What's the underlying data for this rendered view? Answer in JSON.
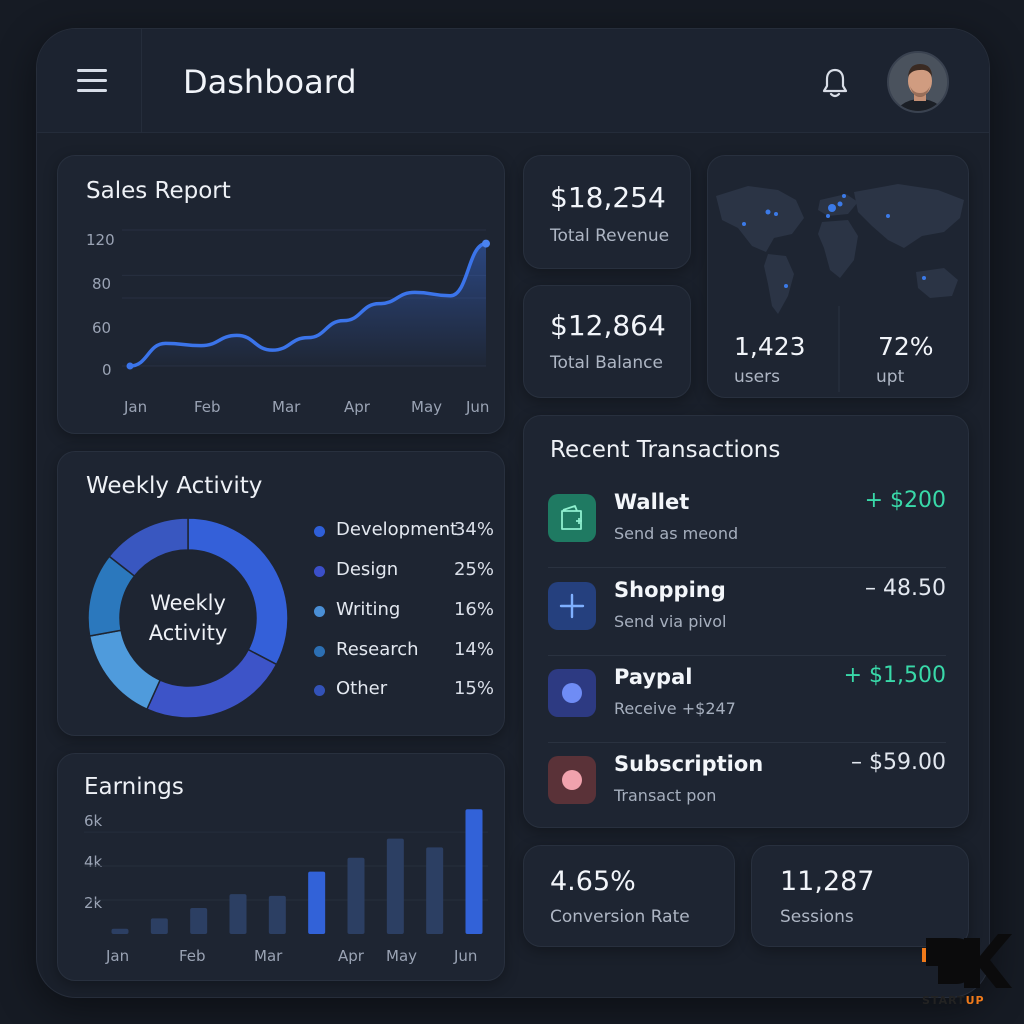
{
  "header": {
    "title": "Dashboard"
  },
  "sales_report": {
    "title": "Sales Report",
    "y_ticks": [
      "120",
      "80",
      "60",
      "0"
    ],
    "x_ticks": [
      "Jan",
      "Feb",
      "Mar",
      "Apr",
      "May",
      "Jun"
    ]
  },
  "stats": {
    "revenue_value": "$18,254",
    "revenue_label": "Total Revenue",
    "balance_value": "$12,864",
    "balance_label": "Total Balance"
  },
  "map_card": {
    "users_value": "1,423",
    "users_label": "users",
    "upt_value": "72%",
    "upt_label": "upt"
  },
  "weekly_activity": {
    "title": "Weekly Activity",
    "center_line1": "Weekly",
    "center_line2": "Activity",
    "items": [
      {
        "name": "Development",
        "pct": "34%",
        "value": 34,
        "color": "#2f5fd8"
      },
      {
        "name": "Design",
        "pct": "25%",
        "value": 25,
        "color": "#3b4fc9"
      },
      {
        "name": "Writing",
        "pct": "16%",
        "value": 16,
        "color": "#4a8fd6"
      },
      {
        "name": "Research",
        "pct": "14%",
        "value": 14,
        "color": "#2c6fb3"
      },
      {
        "name": "Other",
        "pct": "15%",
        "value": 15,
        "color": "#3352b8"
      }
    ]
  },
  "transactions": {
    "title": "Recent Transactions",
    "items": [
      {
        "name": "Wallet",
        "sub": "Send as meond",
        "amount": "+ $200",
        "color": "#39d9a9",
        "icon": "wallet-icon"
      },
      {
        "name": "Shopping",
        "sub": "Send via pivol",
        "amount": "– 48.50",
        "color": "#e3e8f0",
        "icon": "plus-icon"
      },
      {
        "name": "Paypal",
        "sub": "Receive +$247",
        "amount": "+ $1,500",
        "color": "#39d9a9",
        "icon": "paypal-icon"
      },
      {
        "name": "Subscription",
        "sub": "Transact pon",
        "amount": "– $59.00",
        "color": "#e3e8f0",
        "icon": "subscription-icon"
      }
    ]
  },
  "earnings": {
    "title": "Earnings",
    "y_ticks": [
      "6k",
      "4k",
      "2k"
    ],
    "x_ticks": [
      "Jan",
      "Feb",
      "Mar",
      "Apr",
      "May",
      "Jun"
    ]
  },
  "bottom_stats": {
    "conversion_value": "4.65%",
    "conversion_label": "Conversion Rate",
    "sessions_value": "11,287",
    "sessions_label": "Sessions"
  },
  "logo": {
    "text_start": "START",
    "text_up": "UP"
  },
  "colors": {
    "accent": "#3b6fe0",
    "positive": "#39d9a9",
    "card": "#1e2532",
    "background": "#161b24"
  },
  "chart_data": [
    {
      "type": "line",
      "title": "Sales Report",
      "categories": [
        "Jan",
        "Feb",
        "Mar",
        "Apr",
        "May",
        "Jun"
      ],
      "x": [
        0,
        0.5,
        1,
        1.5,
        2,
        2.5,
        3,
        3.5,
        4,
        4.5,
        5
      ],
      "values": [
        0,
        20,
        18,
        27,
        14,
        25,
        40,
        55,
        65,
        62,
        108
      ],
      "ylim": [
        0,
        120
      ],
      "grid": true
    },
    {
      "type": "pie",
      "title": "Weekly Activity",
      "categories": [
        "Development",
        "Design",
        "Writing",
        "Research",
        "Other"
      ],
      "values": [
        34,
        25,
        16,
        14,
        15
      ]
    },
    {
      "type": "bar",
      "title": "Earnings",
      "values": [
        0.3,
        0.9,
        1.5,
        2.3,
        2.2,
        3.6,
        4.4,
        5.5,
        5.0,
        7.2
      ],
      "ylim": [
        0,
        7.5
      ],
      "highlighted": [
        5,
        9
      ]
    }
  ]
}
